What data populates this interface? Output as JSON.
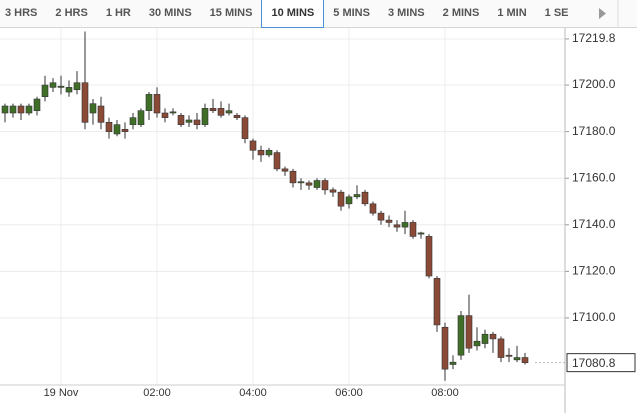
{
  "tabs": [
    "3 HRS",
    "2 HRS",
    "1 HR",
    "30 MINS",
    "15 MINS",
    "10 MINS",
    "5 MINS",
    "3 MINS",
    "2 MINS",
    "1 MIN",
    "1 SE"
  ],
  "active_tab": 5,
  "chart_data": {
    "type": "candlestick",
    "categories": [
      null,
      null,
      null,
      null,
      null,
      null,
      null,
      "19 Nov",
      null,
      null,
      null,
      null,
      null,
      null,
      null,
      null,
      null,
      null,
      null,
      "02:00",
      null,
      null,
      null,
      null,
      null,
      null,
      null,
      null,
      null,
      null,
      null,
      "04:00",
      null,
      null,
      null,
      null,
      null,
      null,
      null,
      null,
      null,
      null,
      null,
      "06:00",
      null,
      null,
      null,
      null,
      null,
      null,
      null,
      null,
      null,
      null,
      null,
      "08:00",
      null,
      null,
      null,
      null,
      null,
      null,
      null,
      null,
      null,
      null
    ],
    "series": [
      {
        "up_color": "#3f6e27",
        "down_color": "#8a4a38",
        "open": [
          17188,
          17188,
          17191,
          17188,
          17189,
          17195,
          17199,
          17199,
          17197,
          17198,
          17201,
          17188,
          17191,
          17184,
          17179,
          17181,
          17183,
          17183,
          17189,
          17196,
          17188,
          17188,
          17187,
          17184,
          17185,
          17183,
          17190,
          17190,
          17188,
          17187,
          17186,
          17176,
          17172,
          17170,
          17171,
          17164,
          17163,
          17158,
          17158,
          17156,
          17159,
          17155,
          17154,
          17149,
          17152,
          17154,
          17149,
          17145,
          17142,
          17140,
          17139,
          17141,
          17136,
          17135,
          17117,
          17096,
          17080,
          17084,
          17101,
          17088,
          17089,
          17093,
          17091,
          17084,
          17082,
          17083
        ],
        "high": [
          17192,
          17192,
          17192,
          17192,
          17195,
          17204,
          17203,
          17204,
          17202,
          17206,
          17223,
          17194,
          17195,
          17186,
          17185,
          17184,
          17188,
          17190,
          17197,
          17199,
          17190,
          17190,
          17188,
          17187,
          17188,
          17192,
          17194,
          17193,
          17192,
          17188,
          17187,
          17177,
          17174,
          17173,
          17172,
          17165,
          17164,
          17160,
          17159,
          17160,
          17160,
          17156,
          17155,
          17153,
          17157,
          17155,
          17150,
          17146,
          17144,
          17142,
          17146,
          17142,
          17137,
          17136,
          17118,
          17098,
          17084,
          17103,
          17110,
          17096,
          17095,
          17094,
          17092,
          17087,
          17088,
          17085
        ],
        "low": [
          17184,
          17186,
          17185,
          17187,
          17187,
          17193,
          17197,
          17196,
          17195,
          17196,
          17181,
          17183,
          17181,
          17177,
          17178,
          17177,
          17181,
          17182,
          17185,
          17186,
          17184,
          17187,
          17182,
          17182,
          17181,
          17182,
          17188,
          17186,
          17187,
          17185,
          17175,
          17168,
          17167,
          17169,
          17163,
          17161,
          17156,
          17155,
          17155,
          17155,
          17153,
          17152,
          17146,
          17147,
          17151,
          17148,
          17144,
          17140,
          17139,
          17137,
          17136,
          17134,
          17134,
          17117,
          17094,
          17073,
          17078,
          17082,
          17085,
          17086,
          17087,
          17085,
          17081,
          17081,
          17081,
          17080
        ],
        "close": [
          17191,
          17191,
          17188,
          17191,
          17194,
          17200,
          17201,
          17199.5,
          17199,
          17201,
          17184,
          17192,
          17184,
          17180,
          17183,
          17180,
          17186,
          17189,
          17196,
          17188,
          17186,
          17188.5,
          17183,
          17185,
          17183,
          17190,
          17189,
          17187,
          17189,
          17186,
          17177,
          17172,
          17170,
          17172,
          17164,
          17163,
          17158,
          17158.5,
          17157,
          17159,
          17155,
          17154,
          17148,
          17152,
          17153,
          17149,
          17145,
          17142,
          17141,
          17139,
          17141,
          17135,
          17136.5,
          17118,
          17097,
          17078,
          17081,
          17101,
          17087,
          17090,
          17093,
          17091,
          17083,
          17083.5,
          17083,
          17080.8
        ]
      }
    ],
    "ylim": [
      17071.2,
      17224.5
    ],
    "yticks": [
      17219.8,
      {
        "value": 17200,
        "label": "17200.0"
      },
      {
        "value": 17180,
        "label": "17180.0"
      },
      {
        "value": 17160,
        "label": "17160.0"
      },
      {
        "value": 17140,
        "label": "17140.0"
      },
      {
        "value": 17120,
        "label": "17120.0"
      },
      {
        "value": 17100,
        "label": "17100.0"
      }
    ],
    "last_price": 17080.8,
    "grid": true
  }
}
